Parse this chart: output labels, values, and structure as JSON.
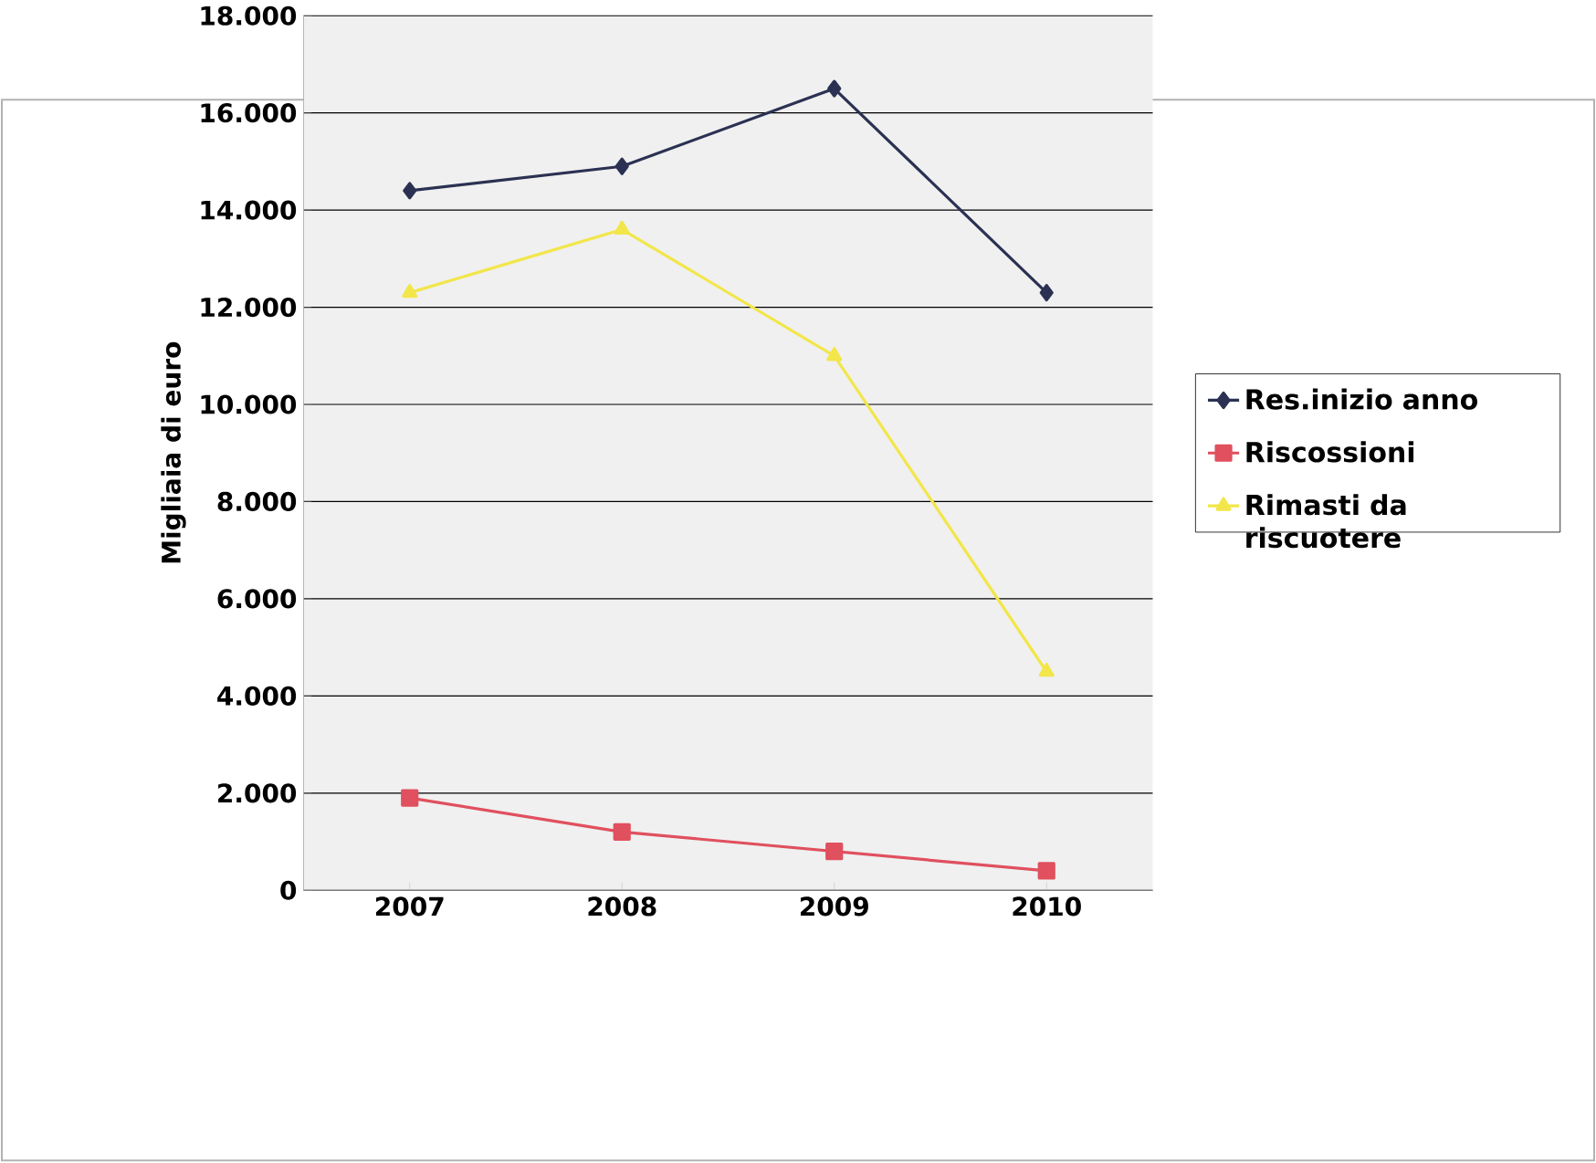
{
  "chart_data": {
    "type": "line",
    "ylabel": "Migliaia di euro",
    "categories": [
      "2007",
      "2008",
      "2009",
      "2010"
    ],
    "series": [
      {
        "name": "Res.inizio anno",
        "color": "#2b3152",
        "marker": "diamond",
        "values": [
          14400,
          14900,
          16500,
          12300
        ]
      },
      {
        "name": "Riscossioni",
        "color": "#e0505e",
        "marker": "square",
        "values": [
          1900,
          1200,
          800,
          400
        ]
      },
      {
        "name": "Rimasti da riscuotere",
        "color": "#f2e64a",
        "marker": "triangle",
        "values": [
          12300,
          13600,
          11000,
          4500
        ]
      }
    ],
    "ylim": [
      0,
      18000
    ],
    "yticks": [
      {
        "value": 0,
        "label": "0"
      },
      {
        "value": 2000,
        "label": "2.000"
      },
      {
        "value": 4000,
        "label": "4.000"
      },
      {
        "value": 6000,
        "label": "6.000"
      },
      {
        "value": 8000,
        "label": "8.000"
      },
      {
        "value": 10000,
        "label": "10.000"
      },
      {
        "value": 12000,
        "label": "12.000"
      },
      {
        "value": 14000,
        "label": "14.000"
      },
      {
        "value": 16000,
        "label": "16.000"
      },
      {
        "value": 18000,
        "label": "18.000"
      }
    ],
    "grid": "y",
    "legend": "right",
    "line_style": "solid"
  }
}
